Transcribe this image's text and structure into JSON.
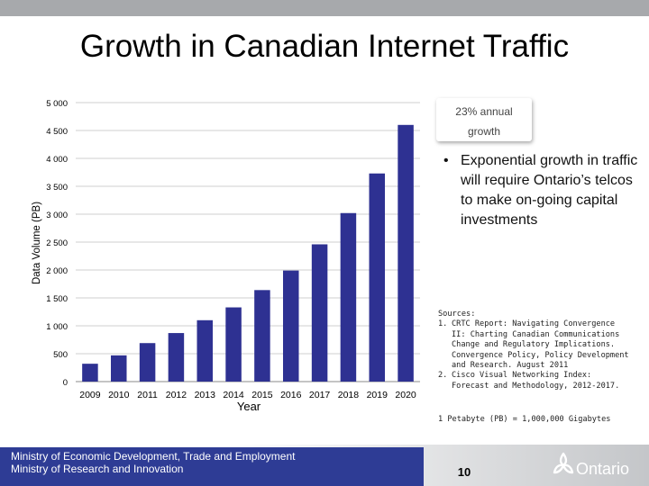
{
  "slide": {
    "title": "Growth in Canadian Internet Traffic",
    "page_number": "10"
  },
  "callout": {
    "line1": "23% annual",
    "line2": "growth"
  },
  "bullets": [
    "Exponential growth in traffic will require Ontario’s telcos to make on-going capital investments"
  ],
  "bullet_symbol": "•",
  "sources": {
    "heading": "Sources:",
    "items": [
      {
        "num": "1.",
        "text": "CRTC Report: Navigating Convergence II: Charting Canadian Communications Change and Regulatory Implications. Convergence Policy, Policy Development and Research. August 2011"
      },
      {
        "num": "2.",
        "text": "Cisco Visual Networking Index: Forecast and Methodology, 2012-2017."
      }
    ]
  },
  "footnote": "1 Petabyte (PB) = 1,000,000 Gigabytes",
  "footer": {
    "ministry_line1": "Ministry of Economic Development, Trade and Employment",
    "ministry_line2": "Ministry of Research and Innovation",
    "logo_text": "Ontario"
  },
  "colors": {
    "bar": "#2e3192",
    "grid": "#bfbfbf",
    "footer_band": "#2e3c95",
    "top_bar": "#a7a9ac"
  },
  "chart_data": {
    "type": "bar",
    "title": "Growth in Canadian Internet Traffic",
    "xlabel": "Year",
    "ylabel": "Data Volume (PB)",
    "ylim": [
      0,
      5000
    ],
    "yticks": [
      0,
      500,
      1000,
      1500,
      2000,
      2500,
      3000,
      3500,
      4000,
      4500,
      5000
    ],
    "ytick_labels": [
      "0",
      "500",
      "1 000",
      "1 500",
      "2 000",
      "2 500",
      "3 000",
      "3 500",
      "4 000",
      "4 500",
      "5 000"
    ],
    "grid": true,
    "categories": [
      "2009",
      "2010",
      "2011",
      "2012",
      "2013",
      "2014",
      "2015",
      "2016",
      "2017",
      "2018",
      "2019",
      "2020"
    ],
    "series": [
      {
        "name": "Data Volume (PB)",
        "values": [
          320,
          470,
          690,
          870,
          1100,
          1330,
          1640,
          1990,
          2460,
          3020,
          3730,
          4600
        ]
      }
    ]
  }
}
